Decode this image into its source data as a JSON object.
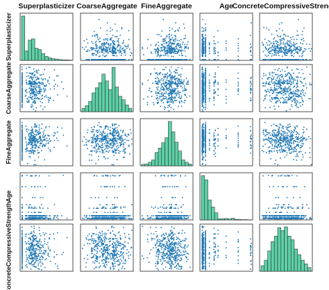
{
  "chart_data": {
    "type": "scatter",
    "variables": [
      "Superplasticizer",
      "CoarseAggregate",
      "FineAggregate",
      "Age",
      "ConcreteCompressiveStrength"
    ],
    "layout": "scatter-matrix",
    "diagonal": "histogram",
    "colors": {
      "points": "#1f77b4",
      "bars": "#5ecfa6",
      "bar_edge": "#1b1b1b",
      "frame": "#222222"
    },
    "variable_ranges": {
      "Superplasticizer": [
        0,
        32
      ],
      "CoarseAggregate": [
        800,
        1150
      ],
      "FineAggregate": [
        590,
        1000
      ],
      "Age": [
        0,
        370
      ],
      "ConcreteCompressiveStrength": [
        0,
        85
      ]
    },
    "histograms": {
      "Superplasticizer": [
        330,
        70,
        150,
        160,
        90,
        80,
        50,
        30,
        20,
        12,
        10,
        6,
        4,
        3,
        2
      ],
      "CoarseAggregate": [
        10,
        18,
        30,
        55,
        70,
        85,
        110,
        90,
        65,
        130,
        72,
        45,
        35,
        20,
        10
      ],
      "FineAggregate": [
        5,
        6,
        12,
        20,
        45,
        60,
        78,
        95,
        150,
        115,
        80,
        50,
        20,
        12,
        6
      ],
      "Age": [
        310,
        280,
        140,
        90,
        50,
        8,
        8,
        10,
        6,
        12,
        4,
        3,
        2,
        2,
        1
      ],
      "ConcreteCompressiveStrength": [
        15,
        30,
        55,
        80,
        95,
        118,
        110,
        120,
        95,
        85,
        60,
        45,
        30,
        20,
        10
      ]
    }
  }
}
